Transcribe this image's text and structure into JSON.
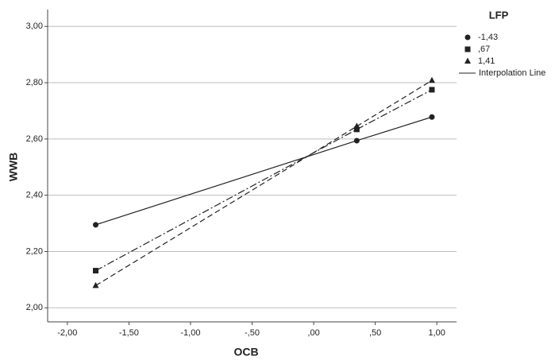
{
  "chart_data": {
    "type": "line",
    "x_label": "OCB",
    "y_label": "WWB",
    "legend_title": "LFP",
    "legend_note": "Interpolation Line",
    "x": [
      -1.77,
      0.35,
      0.96
    ],
    "series": [
      {
        "name": "-1,43",
        "color": "#222222",
        "marker": "circle",
        "dash": "solid",
        "values": [
          2.295,
          2.594,
          2.678
        ]
      },
      {
        "name": ",67",
        "color": "#222222",
        "marker": "square",
        "dash": "dashdot",
        "values": [
          2.132,
          2.634,
          2.775
        ]
      },
      {
        "name": "1,41",
        "color": "#222222",
        "marker": "triangle",
        "dash": "dashed",
        "values": [
          2.079,
          2.645,
          2.808
        ]
      }
    ],
    "xlim": [
      -2.16,
      1.16
    ],
    "xticks": [
      {
        "value": -2,
        "label": "-2,00"
      },
      {
        "value": -1.5,
        "label": "-1,50"
      },
      {
        "value": -1,
        "label": "-1,00"
      },
      {
        "value": -0.5,
        "label": "-,50"
      },
      {
        "value": 0,
        "label": ",00"
      },
      {
        "value": 0.5,
        "label": ",50"
      },
      {
        "value": 1,
        "label": "1,00"
      }
    ],
    "ylim": [
      1.95,
      3.06
    ],
    "yticks": [
      {
        "value": 2,
        "label": "2,00"
      },
      {
        "value": 2.2,
        "label": "2,20"
      },
      {
        "value": 2.4,
        "label": "2,40"
      },
      {
        "value": 2.6,
        "label": "2,60"
      },
      {
        "value": 2.8,
        "label": "2,80"
      },
      {
        "value": 3,
        "label": "3,00"
      }
    ],
    "grid": true
  }
}
